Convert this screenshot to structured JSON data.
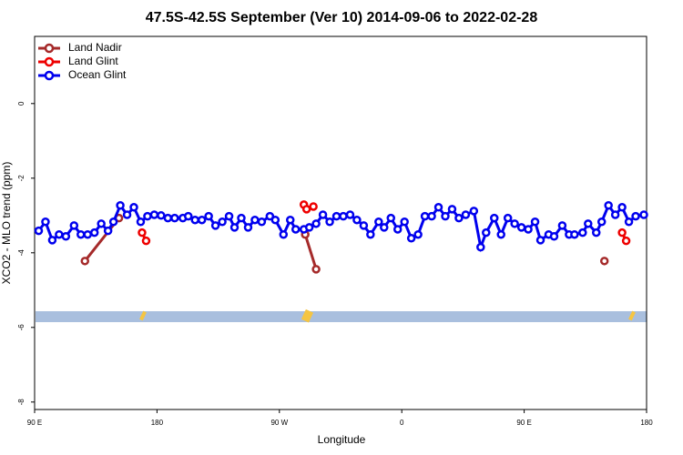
{
  "chart_data": {
    "type": "line",
    "title": "47.5S-42.5S September (Ver 10)   2014-09-06 to 2022-02-28",
    "x_label": "Longitude",
    "y_label": "XCO2 - MLO trend (ppm)",
    "xlim": [
      90,
      540
    ],
    "ylim": [
      -8.2,
      1.8
    ],
    "xticks": [
      {
        "value": 90,
        "label": "90 E"
      },
      {
        "value": 180,
        "label": "180"
      },
      {
        "value": 270,
        "label": "90 W"
      },
      {
        "value": 360,
        "label": "0"
      },
      {
        "value": 450,
        "label": "90 E"
      },
      {
        "value": 540,
        "label": "180"
      }
    ],
    "yticks": [
      0,
      -2,
      -4,
      -6,
      -8
    ],
    "legend": "top-left",
    "series": [
      {
        "name": "Land Nadir",
        "color": "#a52a2a",
        "x": [
          127,
          152,
          null,
          289,
          297,
          null,
          509
        ],
        "values": [
          -4.22,
          -3.07,
          null,
          -3.51,
          -4.44,
          null,
          -4.22
        ]
      },
      {
        "name": "Land Glint",
        "color": "#ee0000",
        "x": [
          169,
          172,
          null,
          288,
          290,
          295,
          null,
          522,
          525
        ],
        "values": [
          -3.46,
          -3.68,
          null,
          -2.71,
          -2.83,
          -2.76,
          null,
          -3.46,
          -3.68
        ]
      },
      {
        "name": "Ocean Glint",
        "color": "#0000ee",
        "x": [
          93,
          98,
          103,
          108,
          113,
          119,
          124,
          129,
          134,
          139,
          144,
          148,
          153,
          158,
          163,
          168,
          173,
          178,
          183,
          188,
          193,
          199,
          203,
          208,
          213,
          218,
          223,
          228,
          233,
          237,
          242,
          247,
          252,
          257,
          263,
          267,
          273,
          278,
          282,
          288,
          292,
          297,
          302,
          307,
          312,
          317,
          322,
          327,
          332,
          337,
          343,
          347,
          352,
          357,
          362,
          367,
          372,
          377,
          382,
          387,
          392,
          397,
          402,
          407,
          413,
          418,
          422,
          428,
          433,
          438,
          443,
          448,
          453,
          458,
          462,
          468,
          472,
          478,
          483,
          487,
          493,
          497,
          503,
          507,
          512,
          517,
          522,
          527,
          532,
          538
        ],
        "values": [
          -3.41,
          -3.17,
          -3.66,
          -3.51,
          -3.56,
          -3.27,
          -3.51,
          -3.51,
          -3.46,
          -3.22,
          -3.41,
          -3.17,
          -2.73,
          -2.98,
          -2.78,
          -3.17,
          -3.02,
          -2.98,
          -3.0,
          -3.07,
          -3.07,
          -3.07,
          -3.02,
          -3.12,
          -3.12,
          -3.02,
          -3.27,
          -3.17,
          -3.02,
          -3.32,
          -3.07,
          -3.32,
          -3.12,
          -3.17,
          -3.02,
          -3.12,
          -3.51,
          -3.12,
          -3.37,
          -3.37,
          -3.32,
          -3.22,
          -2.98,
          -3.17,
          -3.02,
          -3.02,
          -2.98,
          -3.12,
          -3.27,
          -3.51,
          -3.17,
          -3.32,
          -3.07,
          -3.37,
          -3.17,
          -3.61,
          -3.51,
          -3.02,
          -3.02,
          -2.78,
          -3.02,
          -2.83,
          -3.07,
          -2.98,
          -2.88,
          -3.85,
          -3.46,
          -3.07,
          -3.51,
          -3.07,
          -3.22,
          -3.32,
          -3.37,
          -3.17,
          -3.66,
          -3.51,
          -3.56,
          -3.27,
          -3.51,
          -3.51,
          -3.46,
          -3.22,
          -3.46,
          -3.17,
          -2.73,
          -2.98,
          -2.78,
          -3.17,
          -3.02,
          -2.98
        ]
      }
    ]
  }
}
